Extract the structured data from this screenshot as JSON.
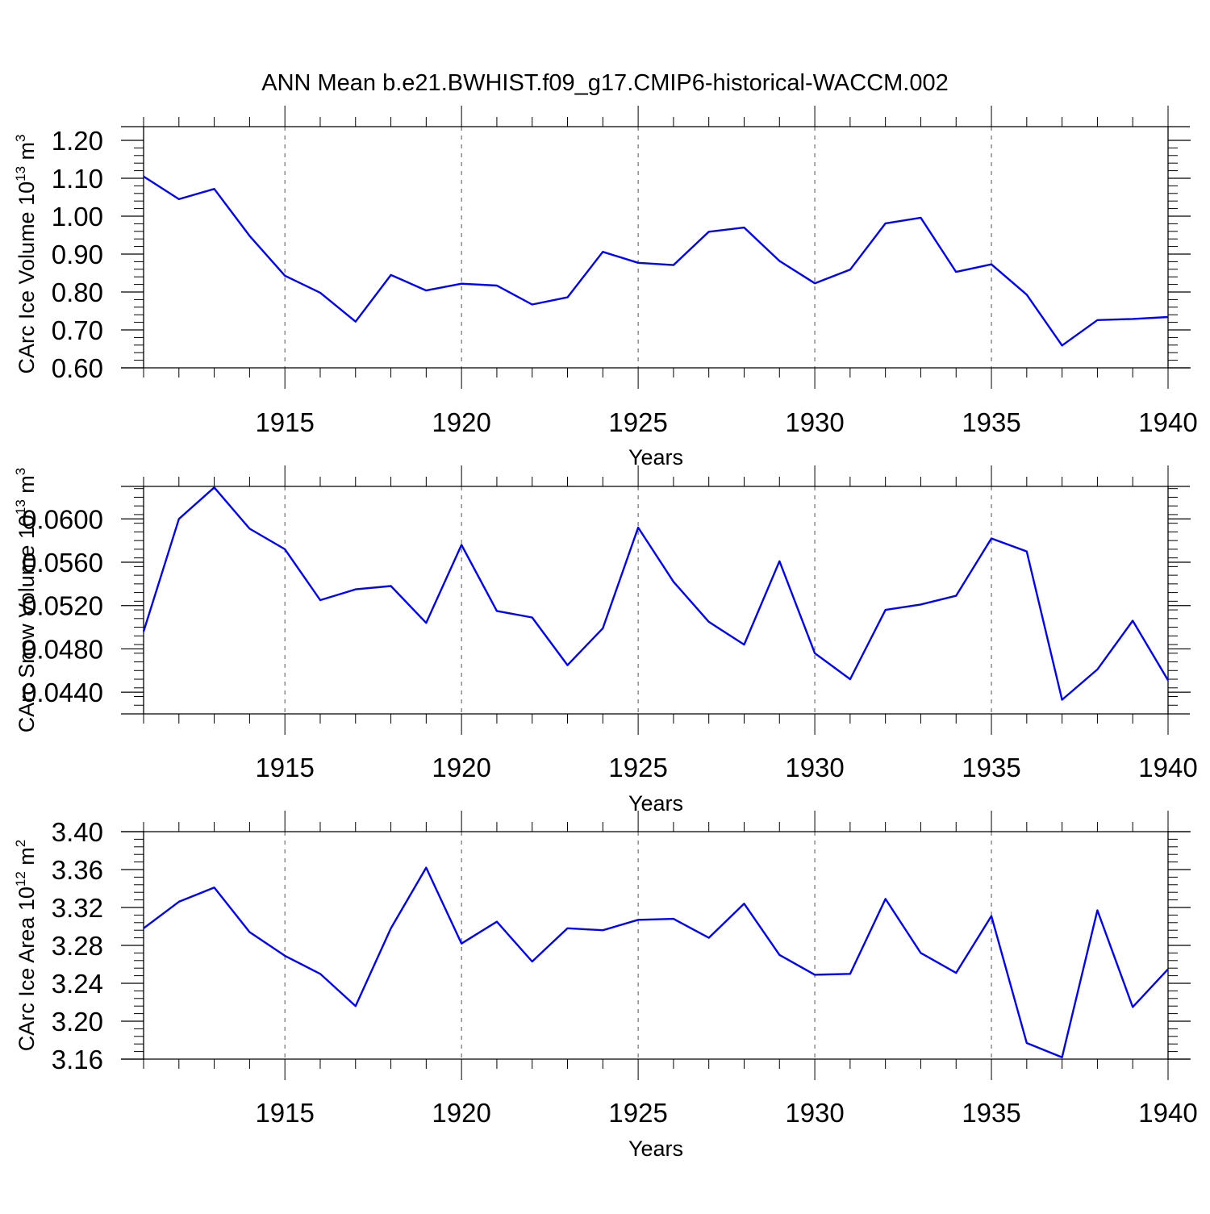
{
  "figure": {
    "title": "ANN Mean b.e21.BWHIST.f09_g17.CMIP6-historical-WACCM.002",
    "line_color": "#0000ff"
  },
  "chart_data": [
    {
      "type": "line",
      "xlabel": "Years",
      "ylabel": "CArc Ice Volume 10",
      "ylabel_sup": "13",
      "ylabel_unit": " m",
      "ylabel_unit_sup": "3",
      "xlim": [
        1911,
        1940
      ],
      "ylim": [
        0.6,
        1.2
      ],
      "x_ticks": [
        1915,
        1920,
        1925,
        1930,
        1935,
        1940
      ],
      "y_ticks": [
        0.6,
        0.7,
        0.8,
        0.9,
        1.0,
        1.1,
        1.2
      ],
      "y_tick_labels": [
        "0.60",
        "0.70",
        "0.80",
        "0.90",
        "1.00",
        "1.10",
        "1.20"
      ],
      "grid": "dashed vertical lines at major x ticks",
      "x": [
        1911,
        1912,
        1913,
        1914,
        1915,
        1916,
        1917,
        1918,
        1919,
        1920,
        1921,
        1922,
        1923,
        1924,
        1925,
        1926,
        1927,
        1928,
        1929,
        1930,
        1931,
        1932,
        1933,
        1934,
        1935,
        1936,
        1937,
        1938,
        1939,
        1940
      ],
      "series": [
        {
          "values": [
            1.105,
            1.045,
            1.072,
            0.948,
            0.843,
            0.798,
            0.722,
            0.845,
            0.804,
            0.822,
            0.817,
            0.767,
            0.786,
            0.906,
            0.877,
            0.871,
            0.959,
            0.97,
            0.882,
            0.823,
            0.859,
            0.981,
            0.996,
            0.853,
            0.873,
            0.793,
            0.659,
            0.726,
            0.729,
            0.734
          ]
        }
      ]
    },
    {
      "type": "line",
      "xlabel": "Years",
      "ylabel": "CArc Snow Volume 10",
      "ylabel_sup": "13",
      "ylabel_unit": " m",
      "ylabel_unit_sup": "3",
      "xlim": [
        1911,
        1940
      ],
      "ylim": [
        0.042,
        0.063
      ],
      "x_ticks": [
        1915,
        1920,
        1925,
        1930,
        1935,
        1940
      ],
      "y_ticks": [
        0.044,
        0.048,
        0.052,
        0.056,
        0.06
      ],
      "y_tick_labels": [
        "0.0440",
        "0.0480",
        "0.0520",
        "0.0560",
        "0.0600"
      ],
      "grid": "dashed vertical lines at major x ticks",
      "x": [
        1911,
        1912,
        1913,
        1914,
        1915,
        1916,
        1917,
        1918,
        1919,
        1920,
        1921,
        1922,
        1923,
        1924,
        1925,
        1926,
        1927,
        1928,
        1929,
        1930,
        1931,
        1932,
        1933,
        1934,
        1935,
        1936,
        1937,
        1938,
        1939,
        1940
      ],
      "series": [
        {
          "values": [
            0.0496,
            0.06,
            0.0629,
            0.0591,
            0.0572,
            0.0525,
            0.0535,
            0.0538,
            0.0504,
            0.0576,
            0.0515,
            0.0509,
            0.0465,
            0.0499,
            0.0592,
            0.0542,
            0.0505,
            0.0484,
            0.0561,
            0.0476,
            0.0452,
            0.0516,
            0.0521,
            0.0529,
            0.0582,
            0.057,
            0.0433,
            0.0461,
            0.0506,
            0.0451
          ]
        }
      ]
    },
    {
      "type": "line",
      "xlabel": "Years",
      "ylabel": "CArc Ice Area 10",
      "ylabel_sup": "12",
      "ylabel_unit": " m",
      "ylabel_unit_sup": "2",
      "xlim": [
        1911,
        1940
      ],
      "ylim": [
        3.16,
        3.4
      ],
      "x_ticks": [
        1915,
        1920,
        1925,
        1930,
        1935,
        1940
      ],
      "y_ticks": [
        3.16,
        3.2,
        3.24,
        3.28,
        3.32,
        3.36,
        3.4
      ],
      "y_tick_labels": [
        "3.16",
        "3.20",
        "3.24",
        "3.28",
        "3.32",
        "3.36",
        "3.40"
      ],
      "grid": "dashed vertical lines at major x ticks",
      "x": [
        1911,
        1912,
        1913,
        1914,
        1915,
        1916,
        1917,
        1918,
        1919,
        1920,
        1921,
        1922,
        1923,
        1924,
        1925,
        1926,
        1927,
        1928,
        1929,
        1930,
        1931,
        1932,
        1933,
        1934,
        1935,
        1936,
        1937,
        1938,
        1939,
        1940
      ],
      "series": [
        {
          "values": [
            3.298,
            3.326,
            3.341,
            3.294,
            3.269,
            3.25,
            3.216,
            3.298,
            3.362,
            3.282,
            3.305,
            3.263,
            3.298,
            3.296,
            3.307,
            3.308,
            3.288,
            3.324,
            3.27,
            3.249,
            3.25,
            3.329,
            3.272,
            3.251,
            3.311,
            3.177,
            3.162,
            3.317,
            3.215,
            3.255
          ]
        }
      ]
    }
  ]
}
